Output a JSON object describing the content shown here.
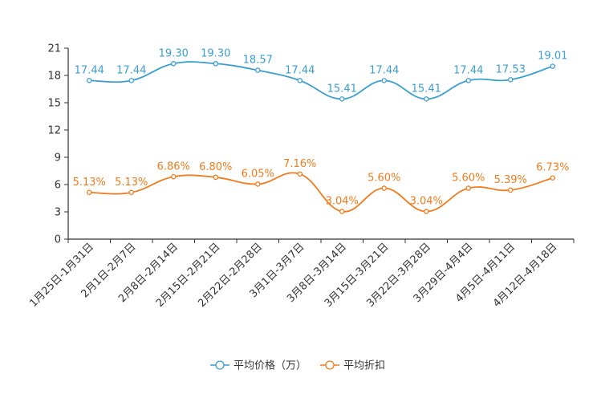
{
  "chart_data": {
    "type": "line",
    "title": "",
    "xlabel": "",
    "ylabel": "",
    "ylim": [
      0,
      21
    ],
    "yticks": [
      0,
      3,
      6,
      9,
      12,
      15,
      18,
      21
    ],
    "grid": false,
    "legend_position": "bottom",
    "categories": [
      "1月25日-1月31日",
      "2月1日-2月7日",
      "2月8日-2月14日",
      "2月15日-2月21日",
      "2月22日-2月28日",
      "3月1日-3月7日",
      "3月8日-3月14日",
      "3月15日-3月21日",
      "3月22日-3月28日",
      "3月29日-4月4日",
      "4月5日-4月11日",
      "4月12日-4月18日"
    ],
    "series": [
      {
        "name": "平均价格（万）",
        "color": "#3a9fd0",
        "values": [
          17.44,
          17.44,
          19.3,
          19.3,
          18.57,
          17.44,
          15.41,
          17.44,
          15.41,
          17.44,
          17.53,
          19.01
        ],
        "labels": [
          "17.44",
          "17.44",
          "19.30",
          "19.30",
          "18.57",
          "17.44",
          "15.41",
          "17.44",
          "15.41",
          "17.44",
          "17.53",
          "19.01"
        ]
      },
      {
        "name": "平均折扣",
        "color": "#f07c1d",
        "values": [
          5.13,
          5.13,
          6.86,
          6.8,
          6.05,
          7.16,
          3.04,
          5.6,
          3.04,
          5.6,
          5.39,
          6.73
        ],
        "labels": [
          "5.13%",
          "5.13%",
          "6.86%",
          "6.80%",
          "6.05%",
          "7.16%",
          "3.04%",
          "5.60%",
          "3.04%",
          "5.60%",
          "5.39%",
          "6.73%"
        ]
      }
    ]
  }
}
